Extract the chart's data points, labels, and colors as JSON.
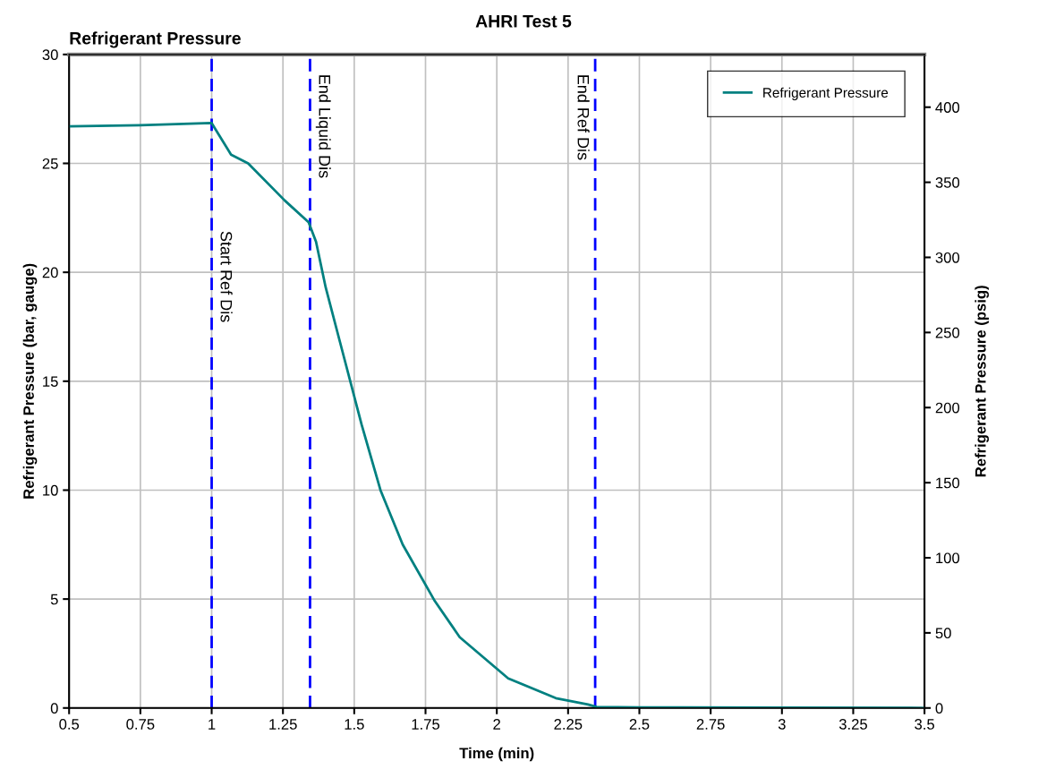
{
  "chart_data": {
    "type": "line",
    "title": "AHRI Test 5",
    "subtitle": "Refrigerant Pressure",
    "xlabel": "Time (min)",
    "ylabel": "Refrigerant Pressure (bar, gauge)",
    "y2label": "Refrigerant Pressure (psig)",
    "series": [
      {
        "name": "Refrigerant Pressure",
        "color": "#008080",
        "x": [
          0.5,
          0.75,
          1.0,
          1.068,
          1.128,
          1.256,
          1.34,
          1.366,
          1.4,
          1.45,
          1.526,
          1.592,
          1.67,
          1.783,
          1.87,
          2.04,
          2.207,
          2.32,
          2.35,
          2.5,
          3.0,
          3.5
        ],
        "values": [
          26.7,
          26.75,
          26.85,
          25.4,
          25.0,
          23.3,
          22.3,
          21.4,
          19.3,
          16.8,
          13.0,
          10.0,
          7.5,
          4.9,
          3.25,
          1.36,
          0.45,
          0.16,
          0.05,
          0.03,
          0.02,
          0.0
        ]
      }
    ],
    "xlim": [
      0.5,
      3.5
    ],
    "xticks": [
      0.5,
      0.75,
      1,
      1.25,
      1.5,
      1.75,
      2,
      2.25,
      2.5,
      2.75,
      3,
      3.25,
      3.5
    ],
    "ylim": [
      0,
      30
    ],
    "yticks": [
      0,
      5,
      10,
      15,
      20,
      25,
      30
    ],
    "y2lim": [
      0,
      435.1
    ],
    "y2ticks": [
      0,
      50,
      100,
      150,
      200,
      250,
      300,
      350,
      400
    ],
    "ref_lines": [
      {
        "axis": "x",
        "value": 1.0,
        "label": "Start Ref Dis",
        "color": "#0000ff",
        "line_style": "dashed"
      },
      {
        "axis": "x",
        "value": 1.345,
        "label": "End Liquid Dis",
        "color": "#0000ff",
        "line_style": "dashed"
      },
      {
        "axis": "x",
        "value": 2.345,
        "label": "End Ref Dis",
        "color": "#0000ff",
        "line_style": "dashed"
      }
    ],
    "grid": true,
    "legend": "top right",
    "marker": "none",
    "line_style": "solid"
  }
}
